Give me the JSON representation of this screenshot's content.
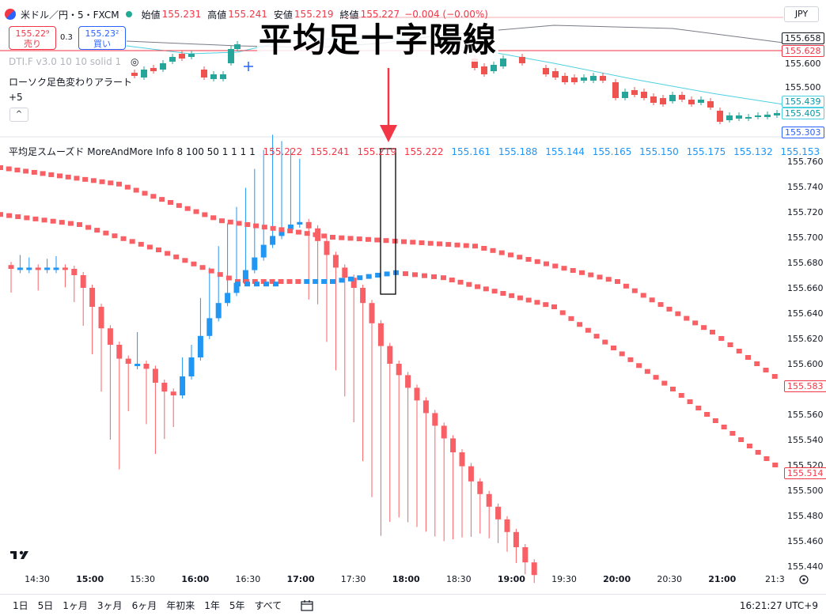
{
  "header": {
    "symbol": "米ドル／円・5・FXCM",
    "open_label": "始値",
    "open": "155.231",
    "high_label": "高値",
    "high": "155.241",
    "low_label": "安値",
    "low": "155.219",
    "close_label": "終値",
    "close": "155.227",
    "change": "−0.004 (−0.00%)"
  },
  "currency": "JPY",
  "trade": {
    "sell_price": "155.22⁹",
    "sell_label": "売り",
    "buy_price": "155.23²",
    "buy_label": "買い",
    "spread": "0.3"
  },
  "indicators": {
    "dti": "DTI.F v3.0 10 10 solid 1",
    "low": "ローソク足色変わりアラート",
    "plus": "+5",
    "collapse": "^"
  },
  "overlay_title": "平均足十字陽線",
  "ha_legend": {
    "name": "平均足スムーズド MoreAndMore Info 8 100 50 1 1 1 1",
    "red_values": [
      "155.222",
      "155.241",
      "155.219",
      "155.222"
    ],
    "blue_values": [
      "155.161",
      "155.188",
      "155.144",
      "155.165",
      "155.150",
      "155.175",
      "155.132",
      "155.153"
    ],
    "ellipsis": "..."
  },
  "top_pane_prices": {
    "labels": [
      "155.658",
      "155.628",
      "155.600",
      "155.500",
      "155.439",
      "155.405",
      "155.303"
    ]
  },
  "price_axis": {
    "ticks": [
      "155.760",
      "155.740",
      "155.720",
      "155.700",
      "155.680",
      "155.660",
      "155.640",
      "155.620",
      "155.600",
      "155.580",
      "155.560",
      "155.540",
      "155.520",
      "155.500",
      "155.480",
      "155.460",
      "155.440"
    ],
    "tag_583": "155.583",
    "tag_514": "155.514"
  },
  "time_axis": {
    "labels": [
      "14:30",
      "15:00",
      "15:30",
      "16:00",
      "16:30",
      "17:00",
      "17:30",
      "18:00",
      "18:30",
      "19:00",
      "19:30",
      "20:00",
      "20:30",
      "21:00",
      "21:3"
    ],
    "bold": [
      false,
      true,
      false,
      true,
      false,
      true,
      false,
      true,
      false,
      true,
      false,
      true,
      false,
      true,
      false
    ]
  },
  "bottom": {
    "ranges": [
      "1日",
      "5日",
      "1ヶ月",
      "3ヶ月",
      "6ヶ月",
      "年初来",
      "1年",
      "5年",
      "すべて"
    ],
    "clock": "16:21:27 UTC+9"
  },
  "colors": {
    "bull": "#2196f3",
    "bear": "#f86065",
    "bull_candle": "#26a69a",
    "bear_candle": "#ef5350",
    "ma_teal": "#4dd0e1",
    "ma_gray": "#787b86",
    "red_line": "#f23645"
  },
  "chart_data": {
    "type": "candlestick",
    "title": "平均足十字陽線",
    "ylim": [
      155.44,
      155.77
    ],
    "series": [
      {
        "name": "平均足スムーズド",
        "open": [
          155.678,
          155.675,
          155.676,
          155.676,
          155.675,
          155.676,
          155.676,
          155.675,
          155.67,
          155.66,
          155.645,
          155.628,
          155.615,
          155.604,
          155.6,
          155.6,
          155.596,
          155.585,
          155.578,
          155.575,
          155.59,
          155.605,
          155.622,
          155.636,
          155.648,
          155.656,
          155.664,
          155.674,
          155.684,
          155.694,
          155.701,
          155.706,
          155.71,
          155.712,
          155.707,
          155.697,
          155.686,
          155.676,
          155.668,
          155.66,
          155.648,
          155.632,
          155.614,
          155.6,
          155.591,
          155.581,
          155.571,
          155.561,
          155.551,
          155.541,
          155.53,
          155.519,
          155.507,
          155.497,
          155.487,
          155.477,
          155.467,
          155.455,
          155.443
        ],
        "close": [
          155.675,
          155.676,
          155.676,
          155.675,
          155.676,
          155.676,
          155.675,
          155.67,
          155.66,
          155.645,
          155.628,
          155.615,
          155.604,
          155.6,
          155.6,
          155.596,
          155.585,
          155.578,
          155.575,
          155.59,
          155.605,
          155.622,
          155.636,
          155.648,
          155.656,
          155.664,
          155.674,
          155.684,
          155.694,
          155.701,
          155.706,
          155.71,
          155.712,
          155.707,
          155.697,
          155.686,
          155.676,
          155.668,
          155.66,
          155.648,
          155.632,
          155.614,
          155.6,
          155.591,
          155.581,
          155.571,
          155.561,
          155.551,
          155.541,
          155.53,
          155.519,
          155.507,
          155.497,
          155.487,
          155.477,
          155.467,
          155.455,
          155.443,
          155.433
        ]
      }
    ]
  }
}
